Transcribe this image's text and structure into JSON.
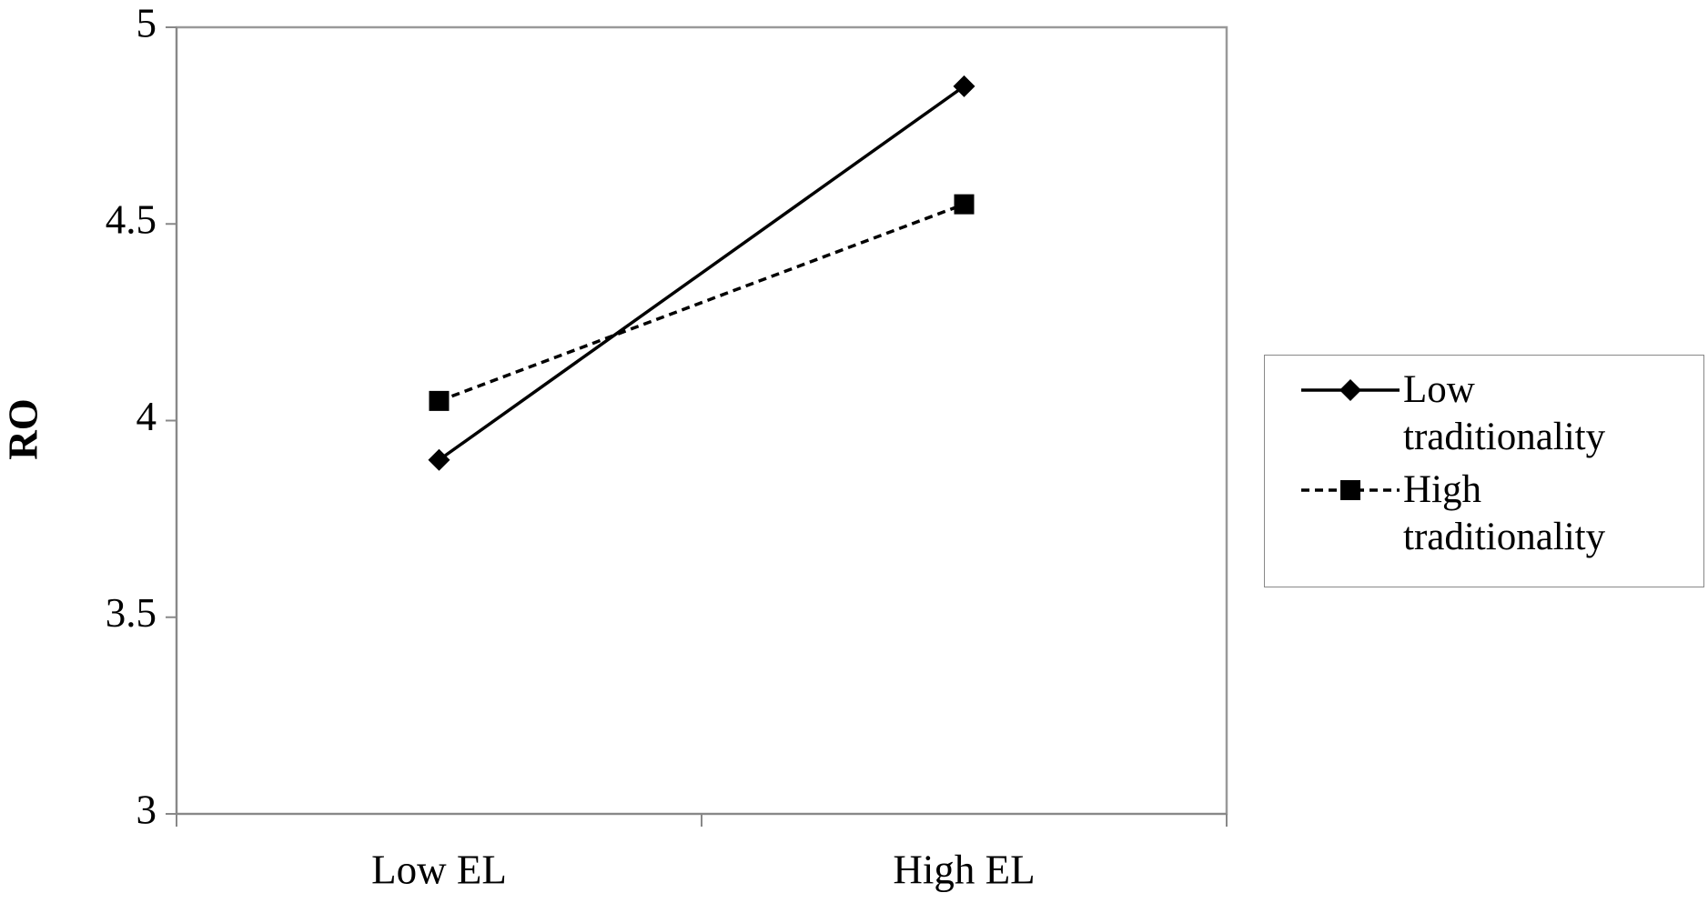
{
  "chart_data": {
    "type": "line",
    "y_label": "RO",
    "categories": [
      "Low EL",
      "High EL"
    ],
    "series": [
      {
        "name": "Low traditionality",
        "color": "#000000",
        "line_style": "solid",
        "marker": "diamond",
        "values": [
          3.9,
          4.85
        ]
      },
      {
        "name": "High traditionality",
        "color": "#000000",
        "line_style": "dashed",
        "marker": "square",
        "values": [
          4.05,
          4.55
        ]
      }
    ],
    "ylim": [
      3,
      5
    ],
    "yticks": [
      3,
      3.5,
      4,
      4.5,
      5
    ],
    "grid": false,
    "legend": "right"
  }
}
